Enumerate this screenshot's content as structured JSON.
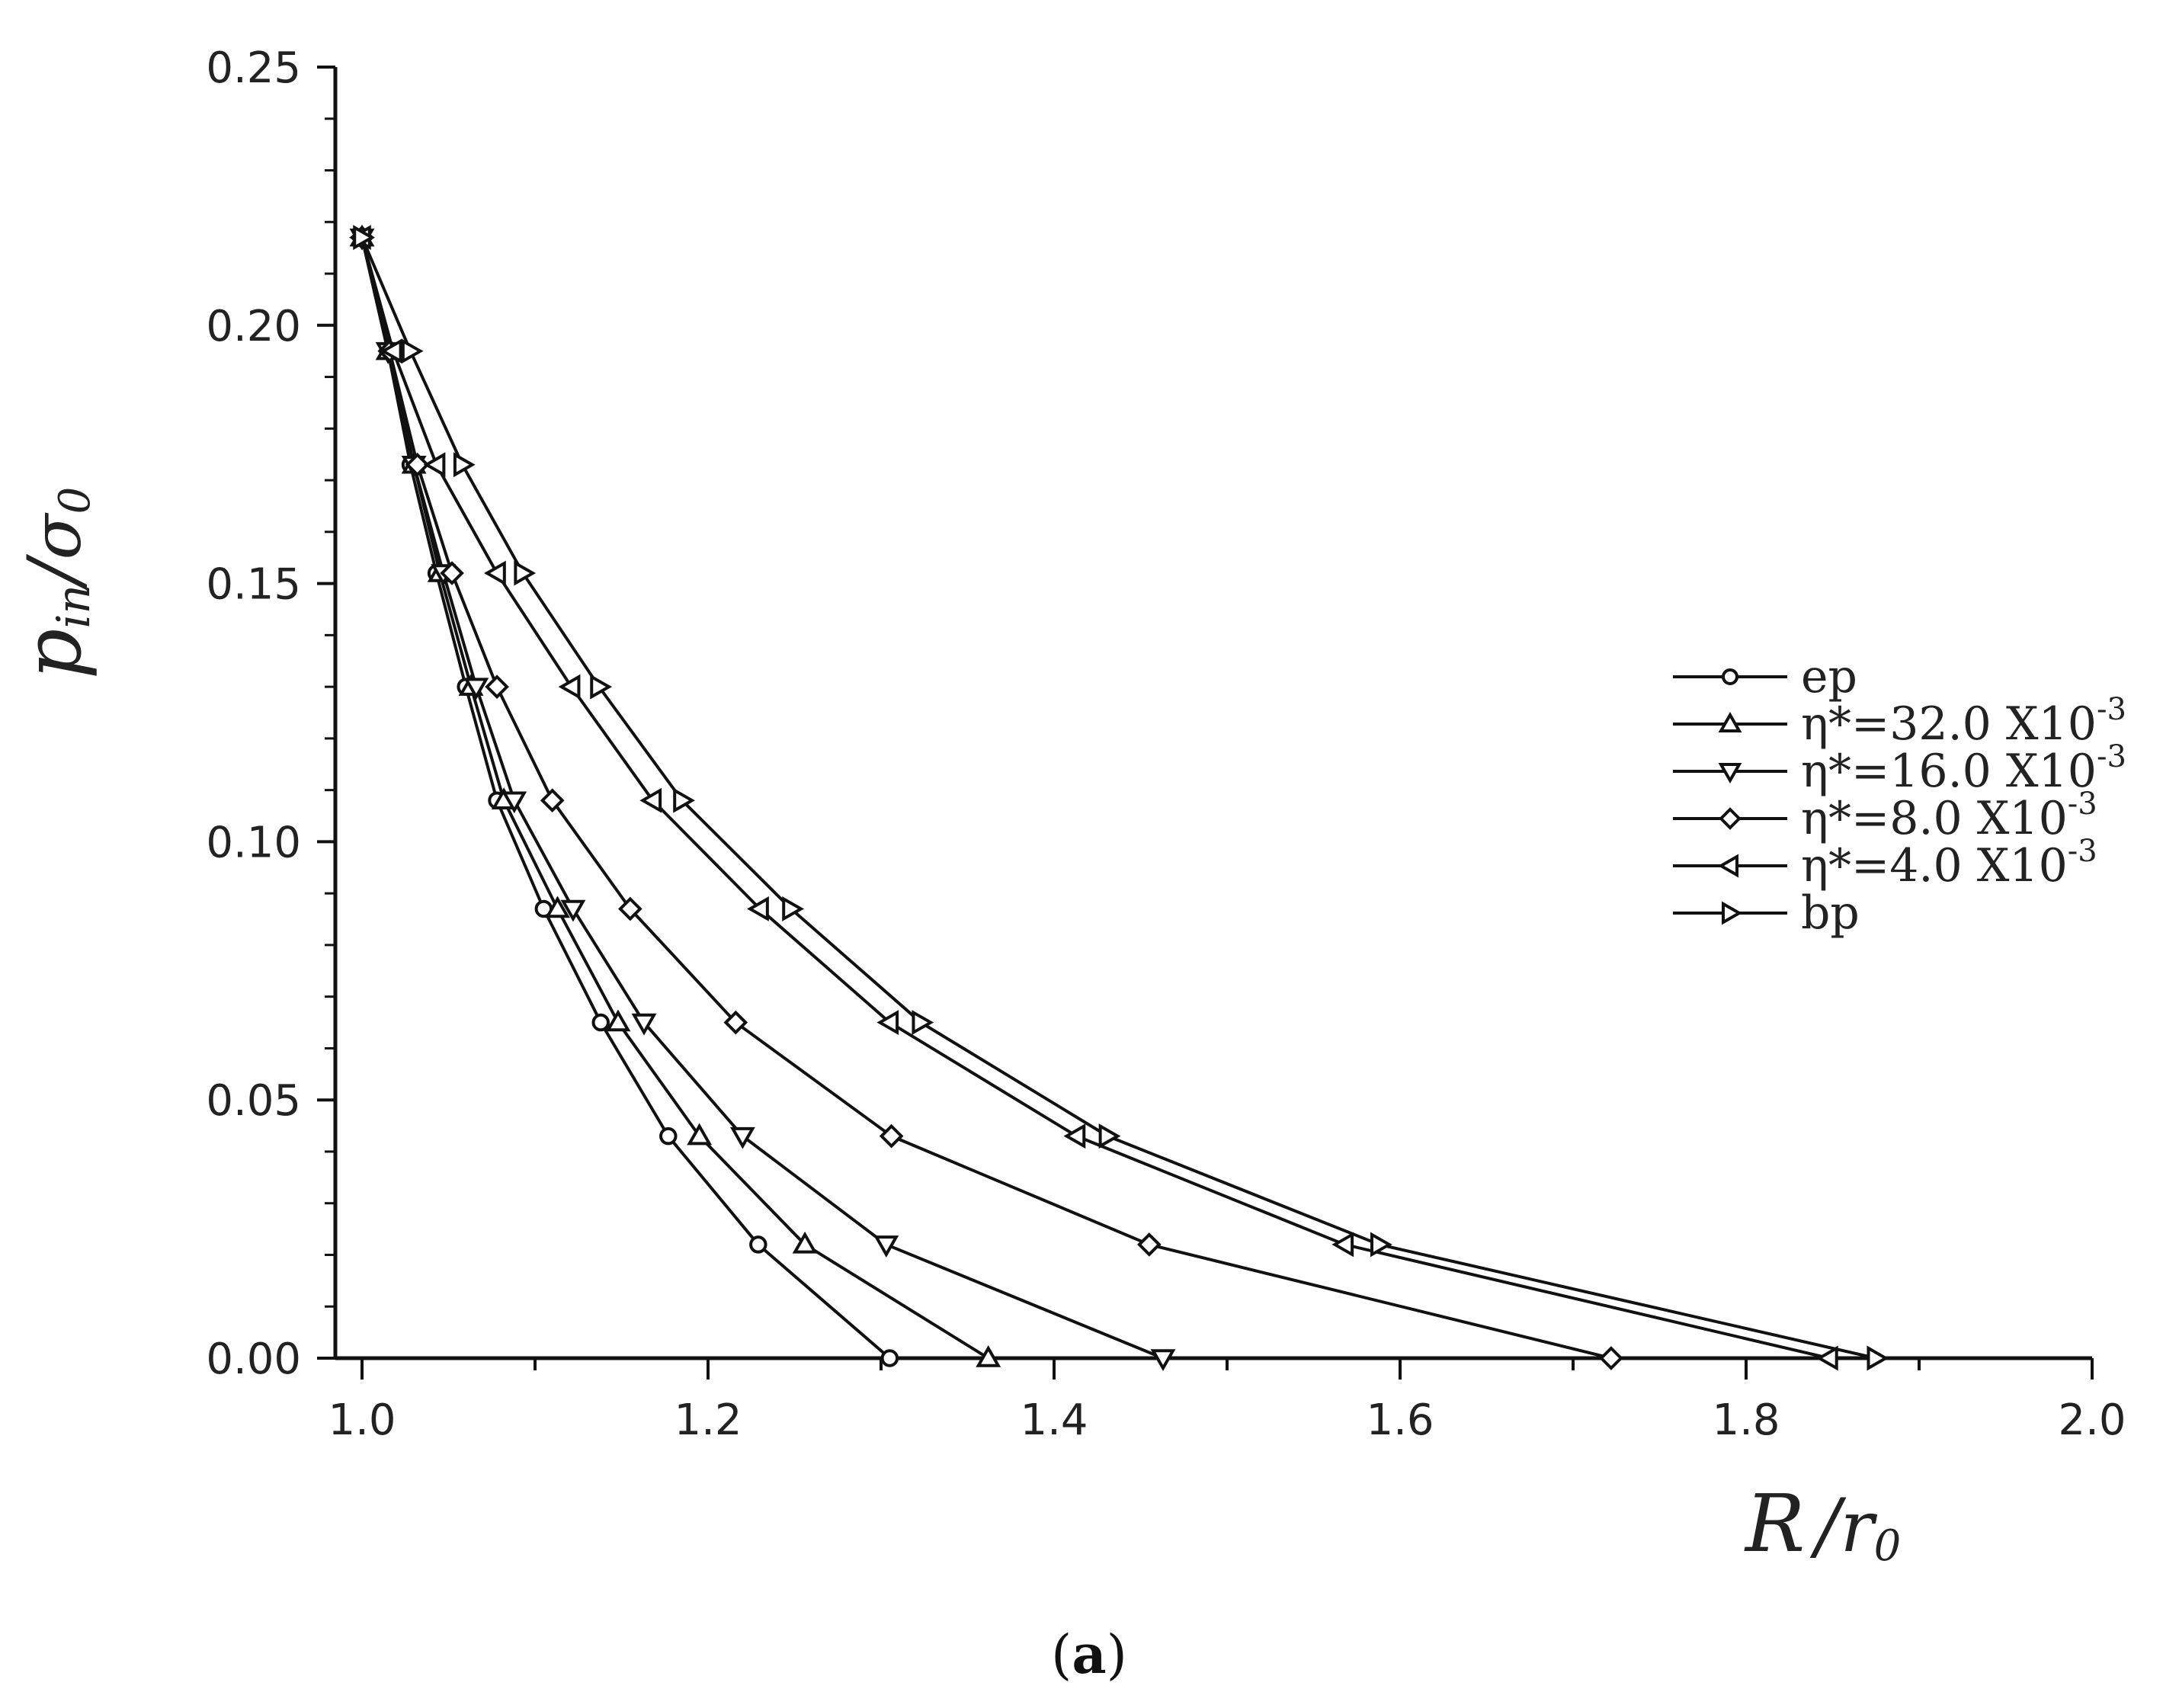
{
  "chart_data": {
    "type": "line",
    "caption_open": "(",
    "caption_letter": "a",
    "caption_close": ")",
    "y_title_base": "p",
    "y_title_sub": "in",
    "y_title_slash": "/",
    "y_title_sigma": "σ",
    "y_title_sigma_sub": "0",
    "x_title_base": "R",
    "x_title_slash": "/",
    "x_title_r": "r",
    "x_title_r_sub": "0",
    "xlim": [
      1.0,
      2.0
    ],
    "ylim": [
      0.0,
      0.25
    ],
    "x_ticks": [
      "1.0",
      "1.2",
      "1.4",
      "1.6",
      "1.8",
      "2.0"
    ],
    "y_ticks": [
      "0.00",
      "0.05",
      "0.10",
      "0.15",
      "0.20",
      "0.25"
    ],
    "grid": false,
    "legend_position": "right",
    "series": [
      {
        "name": "ep",
        "legend_prefix": "ep",
        "legend_exp": "",
        "marker": "circle-filled",
        "x": [
          1.0,
          1.015,
          1.028,
          1.043,
          1.06,
          1.078,
          1.105,
          1.138,
          1.177,
          1.229,
          1.305
        ],
        "y": [
          0.217,
          0.195,
          0.173,
          0.152,
          0.13,
          0.108,
          0.087,
          0.065,
          0.043,
          0.022,
          0.0
        ]
      },
      {
        "name": "η*=32.0 X10-3",
        "legend_prefix": "η*=32.0 X10",
        "legend_exp": "-3",
        "marker": "triangle-up",
        "x": [
          1.0,
          1.015,
          1.03,
          1.045,
          1.063,
          1.082,
          1.113,
          1.148,
          1.195,
          1.256,
          1.362
        ],
        "y": [
          0.217,
          0.195,
          0.173,
          0.152,
          0.13,
          0.108,
          0.087,
          0.065,
          0.043,
          0.022,
          0.0
        ]
      },
      {
        "name": "η*=16.0 X10-3",
        "legend_prefix": "η*=16.0 X10",
        "legend_exp": "-3",
        "marker": "triangle-down",
        "x": [
          1.0,
          1.015,
          1.03,
          1.047,
          1.066,
          1.088,
          1.122,
          1.163,
          1.22,
          1.303,
          1.463
        ],
        "y": [
          0.217,
          0.195,
          0.173,
          0.152,
          0.13,
          0.108,
          0.087,
          0.065,
          0.043,
          0.022,
          0.0
        ]
      },
      {
        "name": "η*=8.0 X10-3",
        "legend_prefix": "η*=8.0 X10",
        "legend_exp": "-3",
        "marker": "diamond",
        "x": [
          1.0,
          1.016,
          1.032,
          1.052,
          1.078,
          1.11,
          1.155,
          1.216,
          1.306,
          1.455,
          1.722
        ],
        "y": [
          0.217,
          0.195,
          0.173,
          0.152,
          0.13,
          0.108,
          0.087,
          0.065,
          0.043,
          0.022,
          0.0
        ]
      },
      {
        "name": "η*=4.0 X10-3",
        "legend_prefix": "η*=4.0 X10",
        "legend_exp": "-3",
        "marker": "triangle-left",
        "x": [
          1.0,
          1.018,
          1.043,
          1.078,
          1.121,
          1.168,
          1.23,
          1.305,
          1.413,
          1.568,
          1.848
        ],
        "y": [
          0.217,
          0.195,
          0.173,
          0.152,
          0.13,
          0.108,
          0.087,
          0.065,
          0.043,
          0.022,
          0.0
        ]
      },
      {
        "name": "bp",
        "legend_prefix": "bp",
        "legend_exp": "",
        "marker": "triangle-right",
        "x": [
          1.0,
          1.028,
          1.058,
          1.093,
          1.137,
          1.185,
          1.248,
          1.323,
          1.431,
          1.588,
          1.875
        ],
        "y": [
          0.217,
          0.195,
          0.173,
          0.152,
          0.13,
          0.108,
          0.087,
          0.065,
          0.043,
          0.022,
          0.0
        ]
      }
    ]
  }
}
